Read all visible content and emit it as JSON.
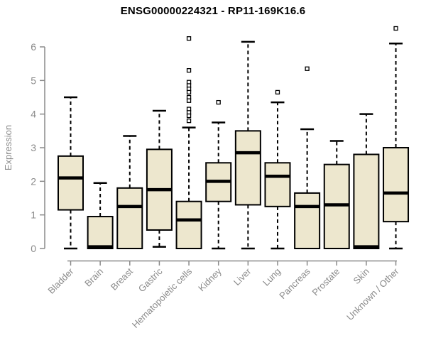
{
  "title": "ENSG00000224321 - RP11-169K16.6",
  "colors": {
    "background": "#ffffff",
    "box_fill": "#EDE7CE",
    "box_stroke": "#000000",
    "median": "#000000",
    "whisker": "#000000",
    "outlier_stroke": "#000000",
    "outlier_fill": "#ffffff",
    "axis": "#8a8a8a",
    "tick_label": "#8a8a8a",
    "title_color": "#000000"
  },
  "chart_data": {
    "type": "boxplot",
    "title": "ENSG00000224321 - RP11-169K16.6",
    "xlabel": "",
    "ylabel": "Expression",
    "ylim": [
      0,
      6.6
    ],
    "yticks": [
      0,
      1,
      2,
      3,
      4,
      5,
      6
    ],
    "grid": false,
    "legend": "none",
    "categories": [
      "Bladder",
      "Brain",
      "Breast",
      "Gastric",
      "Hematopoietic cells",
      "Kidney",
      "Liver",
      "Lung",
      "Pancreas",
      "Prostate",
      "Skin",
      "Unknown / Other"
    ],
    "boxes": [
      {
        "category": "Bladder",
        "low": 0,
        "q1": 1.15,
        "median": 2.1,
        "q3": 2.75,
        "high": 4.5,
        "outliers": []
      },
      {
        "category": "Brain",
        "low": 0,
        "q1": 0,
        "median": 0.05,
        "q3": 0.95,
        "high": 1.95,
        "outliers": []
      },
      {
        "category": "Breast",
        "low": 0,
        "q1": 0,
        "median": 1.25,
        "q3": 1.8,
        "high": 3.35,
        "outliers": []
      },
      {
        "category": "Gastric",
        "low": 0.05,
        "q1": 0.55,
        "median": 1.75,
        "q3": 2.95,
        "high": 4.1,
        "outliers": []
      },
      {
        "category": "Hematopoietic cells",
        "low": 0,
        "q1": 0,
        "median": 0.85,
        "q3": 1.4,
        "high": 3.6,
        "outliers": [
          6.25,
          5.3,
          4.95,
          4.85,
          4.75,
          4.65,
          4.5,
          4.4,
          4.15,
          4.05,
          3.95,
          3.8
        ]
      },
      {
        "category": "Kidney",
        "low": 0,
        "q1": 1.4,
        "median": 2.0,
        "q3": 2.55,
        "high": 3.75,
        "outliers": [
          4.35
        ]
      },
      {
        "category": "Liver",
        "low": 0,
        "q1": 1.3,
        "median": 2.85,
        "q3": 3.5,
        "high": 6.15,
        "outliers": []
      },
      {
        "category": "Lung",
        "low": 0,
        "q1": 1.25,
        "median": 2.15,
        "q3": 2.55,
        "high": 4.35,
        "outliers": [
          4.65
        ]
      },
      {
        "category": "Pancreas",
        "low": 0,
        "q1": 0,
        "median": 1.25,
        "q3": 1.65,
        "high": 3.55,
        "outliers": [
          5.35
        ]
      },
      {
        "category": "Prostate",
        "low": 0,
        "q1": 0,
        "median": 1.3,
        "q3": 2.5,
        "high": 3.2,
        "outliers": []
      },
      {
        "category": "Skin",
        "low": 0,
        "q1": 0,
        "median": 0.05,
        "q3": 2.8,
        "high": 4.0,
        "outliers": []
      },
      {
        "category": "Unknown / Other",
        "low": 0,
        "q1": 0.8,
        "median": 1.65,
        "q3": 3.0,
        "high": 6.1,
        "outliers": [
          6.55
        ]
      }
    ]
  }
}
